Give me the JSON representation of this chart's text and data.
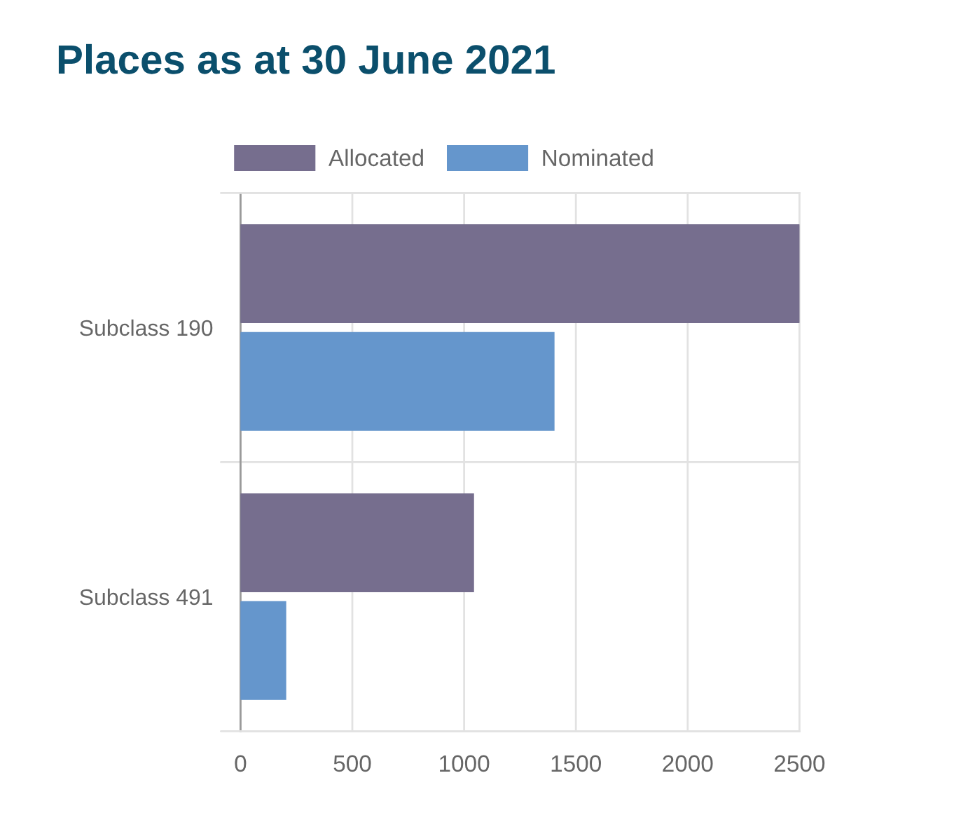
{
  "chart_data": {
    "type": "bar",
    "orientation": "horizontal",
    "title": "Places as at 30 June 2021",
    "categories": [
      "Subclass 190",
      "Subclass 491"
    ],
    "series": [
      {
        "name": "Allocated",
        "color": "#766e8e",
        "values": [
          2500,
          1040
        ]
      },
      {
        "name": "Nominated",
        "color": "#6596cc",
        "values": [
          1400,
          200
        ]
      }
    ],
    "xlim": [
      0,
      2500
    ],
    "xticks": [
      0,
      500,
      1000,
      1500,
      2000,
      2500
    ],
    "grid": true,
    "legend": "top"
  }
}
